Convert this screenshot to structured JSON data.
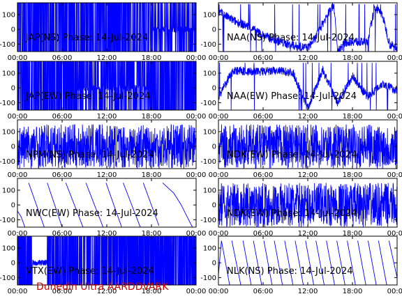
{
  "credit": "Dunedin Ultra AARDDVARK",
  "chart_data": [
    {
      "type": "line",
      "title": "JAP(NS) Phase: 14-Jul-2024",
      "ylim": [
        -150,
        180
      ],
      "xlim": [
        0,
        24
      ],
      "yticks": [
        100,
        0,
        -100
      ],
      "xticks": [
        "00:00",
        "06:00",
        "12:00",
        "18:00",
        "00:00"
      ],
      "series": [
        {
          "values": [
            [
              0,
              0
            ],
            [
              17.8,
              0
            ],
            [
              18.2,
              -120
            ],
            [
              19.5,
              120
            ],
            [
              20.5,
              -150
            ],
            [
              21.5,
              150
            ],
            [
              22.5,
              -150
            ],
            [
              24,
              150
            ]
          ]
        }
      ]
    },
    {
      "type": "line",
      "title": "NAA(NS) Phase: 14-Jul-2024",
      "ylim": [
        -150,
        180
      ],
      "xlim": [
        0,
        24
      ],
      "yticks": [
        100,
        0,
        -100
      ],
      "xticks": [
        "00:00",
        "06:00",
        "12:00",
        "18:00",
        "00:00"
      ],
      "series": [
        {
          "values": [
            [
              0,
              120
            ],
            [
              2,
              60
            ],
            [
              4,
              20
            ],
            [
              6,
              -40
            ],
            [
              8,
              -80
            ],
            [
              10,
              -110
            ],
            [
              12,
              -125
            ],
            [
              13,
              -60
            ],
            [
              14,
              40
            ],
            [
              15,
              130
            ],
            [
              15.5,
              170
            ],
            [
              16,
              -150
            ],
            [
              17,
              -90
            ],
            [
              18,
              -80
            ],
            [
              20,
              -90
            ],
            [
              21,
              150
            ],
            [
              22,
              100
            ],
            [
              23,
              -100
            ],
            [
              24,
              -130
            ]
          ]
        }
      ]
    },
    {
      "type": "line",
      "title": "JAP(EW) Phase: 14-Jul-2024",
      "ylim": [
        -150,
        180
      ],
      "xlim": [
        0,
        24
      ],
      "yticks": [
        100,
        0,
        -100
      ],
      "xticks": [
        "00:00",
        "06:00",
        "12:00",
        "18:00",
        "00:00"
      ],
      "series": [
        {
          "values": [
            [
              0,
              0
            ],
            [
              8,
              0
            ],
            [
              10,
              -150
            ],
            [
              12,
              150
            ],
            [
              17.8,
              0
            ],
            [
              24,
              0
            ]
          ]
        }
      ]
    },
    {
      "type": "line",
      "title": "NAA(EW) Phase: 14-Jul-2024",
      "ylim": [
        -150,
        180
      ],
      "xlim": [
        0,
        24
      ],
      "yticks": [
        100,
        0,
        -100
      ],
      "xticks": [
        "00:00",
        "06:00",
        "12:00",
        "18:00",
        "00:00"
      ],
      "series": [
        {
          "values": [
            [
              0,
              -60
            ],
            [
              2,
              120
            ],
            [
              4,
              110
            ],
            [
              6,
              110
            ],
            [
              8,
              115
            ],
            [
              10,
              105
            ],
            [
              12,
              -140
            ],
            [
              14,
              120
            ],
            [
              16,
              -100
            ],
            [
              18,
              80
            ],
            [
              20,
              -60
            ],
            [
              22,
              30
            ],
            [
              24,
              -20
            ]
          ]
        }
      ]
    },
    {
      "type": "line",
      "title": "NPM(NS) Phase: 14-Jul-2024",
      "ylim": [
        -150,
        180
      ],
      "xlim": [
        0,
        24
      ],
      "yticks": [
        100,
        0,
        -100
      ],
      "xticks": [
        "00:00",
        "06:00",
        "12:00",
        "18:00",
        "00:00"
      ],
      "series": [
        {
          "values": [
            [
              0,
              0
            ],
            [
              24,
              0
            ]
          ]
        }
      ]
    },
    {
      "type": "line",
      "title": "NDK(EW) Phase: 14-Jul-2024",
      "ylim": [
        -150,
        180
      ],
      "xlim": [
        0,
        24
      ],
      "yticks": [
        100,
        0,
        -100
      ],
      "xticks": [
        "00:00",
        "06:00",
        "12:00",
        "18:00",
        "00:00"
      ],
      "series": [
        {
          "values": [
            [
              0,
              0
            ],
            [
              24,
              0
            ]
          ]
        }
      ]
    },
    {
      "type": "line",
      "title": "NWC(EW) Phase: 14-Jul-2024",
      "ylim": [
        -150,
        180
      ],
      "xlim": [
        0,
        24
      ],
      "yticks": [
        100,
        0,
        -100
      ],
      "xticks": [
        "00:00",
        "06:00",
        "12:00",
        "18:00",
        "00:00"
      ],
      "series": [
        {
          "values": [
            [
              0,
              -40
            ],
            [
              0.5,
              -80
            ],
            [
              1,
              -150
            ],
            [
              1.5,
              150
            ],
            [
              3.6,
              -150
            ],
            [
              4,
              150
            ],
            [
              6,
              -150
            ],
            [
              6.5,
              150
            ],
            [
              8.8,
              -150
            ],
            [
              9.2,
              150
            ],
            [
              11.5,
              -150
            ],
            [
              11.9,
              150
            ],
            [
              14,
              -150
            ],
            [
              14.2,
              150
            ],
            [
              16.5,
              -150
            ],
            [
              16.9,
              150
            ],
            [
              19,
              -140
            ],
            [
              19.5,
              150
            ],
            [
              21,
              80
            ],
            [
              22,
              0
            ],
            [
              23,
              -100
            ],
            [
              23.5,
              -150
            ]
          ]
        }
      ]
    },
    {
      "type": "line",
      "title": "NDK(EW) Phase: 14-Jul-2024",
      "ylim": [
        -150,
        180
      ],
      "xlim": [
        0,
        24
      ],
      "yticks": [
        100,
        0,
        -100
      ],
      "xticks": [
        "00:00",
        "06:00",
        "12:00",
        "18:00",
        "00:00"
      ],
      "series": [
        {
          "values": [
            [
              0,
              0
            ],
            [
              24,
              0
            ]
          ]
        }
      ]
    },
    {
      "type": "line",
      "title": "VTX(EW) Phase: 14-Jul-2024",
      "ylim": [
        -150,
        180
      ],
      "xlim": [
        0,
        24
      ],
      "yticks": [
        100,
        0,
        -100
      ],
      "xticks": [
        "00:00",
        "06:00",
        "12:00",
        "18:00",
        "00:00"
      ],
      "series": [
        {
          "values": [
            [
              0,
              0
            ],
            [
              24,
              0
            ]
          ]
        }
      ]
    },
    {
      "type": "line",
      "title": "NLK(NS) Phase: 14-Jul-2024",
      "ylim": [
        -150,
        180
      ],
      "xlim": [
        0,
        24
      ],
      "yticks": [
        100,
        0,
        -100
      ],
      "xticks": [
        "00:00",
        "06:00",
        "12:00",
        "18:00",
        "00:00"
      ],
      "series": [
        {
          "values": [
            [
              0,
              -80
            ],
            [
              0.4,
              150
            ],
            [
              1.5,
              -150
            ],
            [
              1.8,
              150
            ],
            [
              3,
              -150
            ],
            [
              3.3,
              150
            ],
            [
              4.4,
              -150
            ],
            [
              4.7,
              150
            ],
            [
              5.8,
              -150
            ],
            [
              6.1,
              150
            ],
            [
              7.2,
              -150
            ],
            [
              7.5,
              150
            ],
            [
              8.6,
              -150
            ],
            [
              8.9,
              150
            ],
            [
              10,
              -150
            ],
            [
              10.3,
              150
            ],
            [
              11.4,
              -150
            ],
            [
              11.7,
              150
            ],
            [
              12.8,
              -150
            ],
            [
              13.1,
              150
            ],
            [
              14.2,
              -150
            ],
            [
              14.5,
              150
            ],
            [
              15.6,
              -150
            ],
            [
              15.9,
              150
            ],
            [
              17,
              -150
            ],
            [
              17.3,
              150
            ],
            [
              18.4,
              -150
            ],
            [
              18.7,
              150
            ],
            [
              19.8,
              -150
            ],
            [
              20.1,
              150
            ],
            [
              21.2,
              -150
            ],
            [
              21.5,
              150
            ],
            [
              22.6,
              -150
            ],
            [
              22.9,
              150
            ],
            [
              24,
              -100
            ]
          ]
        }
      ]
    }
  ]
}
